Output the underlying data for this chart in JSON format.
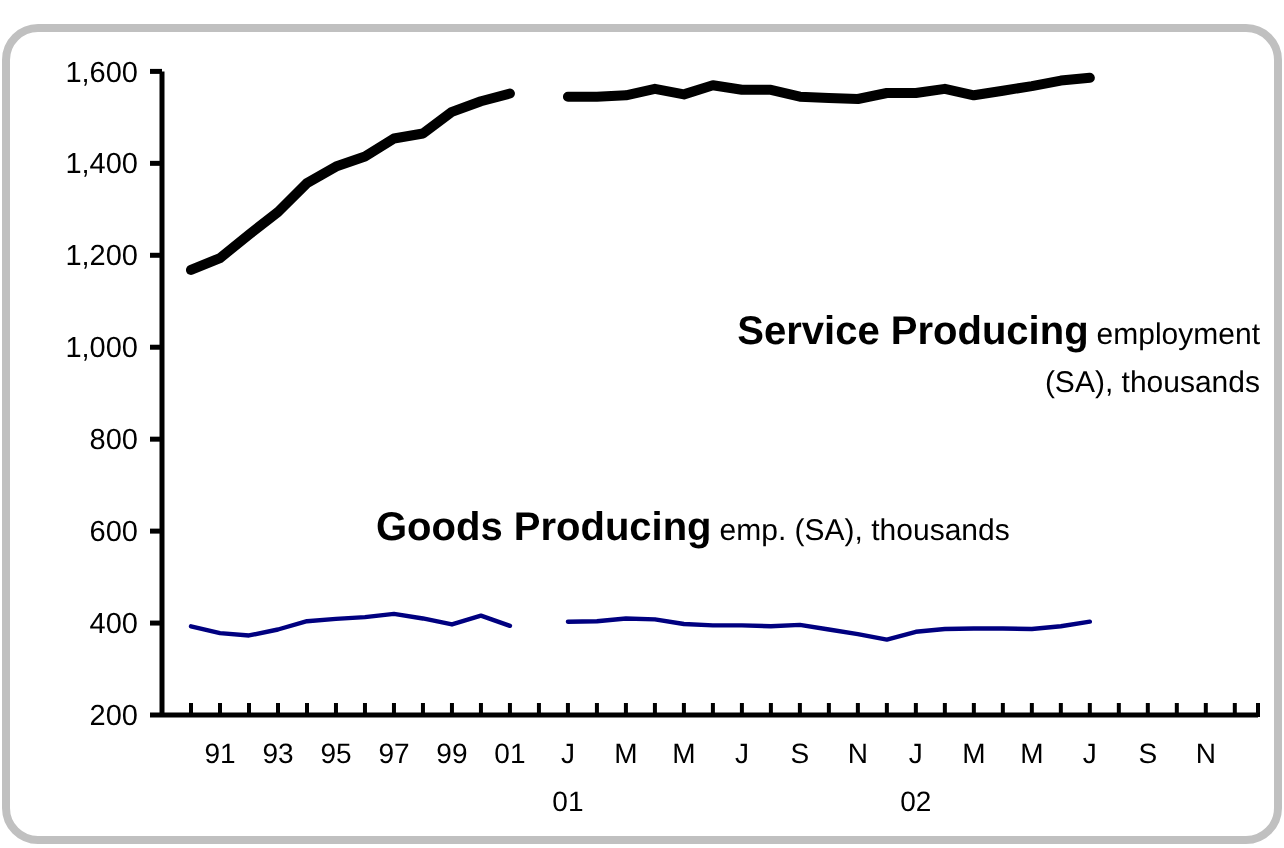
{
  "chart_data": {
    "type": "line",
    "categories": [
      null,
      "91",
      null,
      "93",
      null,
      "95",
      null,
      "97",
      null,
      "99",
      null,
      "01",
      null,
      "J\n01",
      null,
      "M",
      null,
      "M",
      null,
      "J",
      null,
      "S",
      null,
      "N",
      null,
      "J\n02",
      null,
      "M",
      null,
      "M",
      null,
      "J",
      null,
      "S",
      null,
      "N",
      null
    ],
    "series": [
      {
        "color": "#000000",
        "values": [
          1168,
          1194,
          1245,
          1294,
          1357,
          1393,
          1415,
          1454,
          1465,
          1512,
          1535,
          1552,
          null,
          1545,
          1545,
          1548,
          1562,
          1550,
          1570,
          1560,
          1560,
          1545,
          1542,
          1540,
          1553,
          1553,
          1562,
          1548,
          1558,
          1568,
          1580,
          1586,
          null,
          null,
          null,
          null,
          null
        ]
      },
      {
        "color": "#000080",
        "values": [
          393,
          378,
          373,
          386,
          404,
          409,
          413,
          420,
          410,
          397,
          416,
          394,
          null,
          403,
          404,
          410,
          408,
          398,
          395,
          395,
          393,
          396,
          386,
          376,
          364,
          381,
          387,
          388,
          388,
          387,
          393,
          403,
          null,
          null,
          null,
          null,
          null
        ]
      }
    ],
    "annotations": [
      "Service Producing",
      "employment\n(SA), thousands",
      "Goods Producing",
      "emp. (SA), thousands"
    ],
    "ylim": [
      200,
      1600
    ],
    "yticks": [
      {
        "value": 200,
        "label": "200"
      },
      {
        "value": 400,
        "label": "400"
      },
      {
        "value": 600,
        "label": "600"
      },
      {
        "value": 800,
        "label": "800"
      },
      {
        "value": 1000,
        "label": "1,000"
      },
      {
        "value": 1200,
        "label": "1,200"
      },
      {
        "value": 1400,
        "label": "1,400"
      },
      {
        "value": 1600,
        "label": "1,600"
      }
    ],
    "grid": false,
    "marker": "none",
    "line_style": "solid"
  }
}
